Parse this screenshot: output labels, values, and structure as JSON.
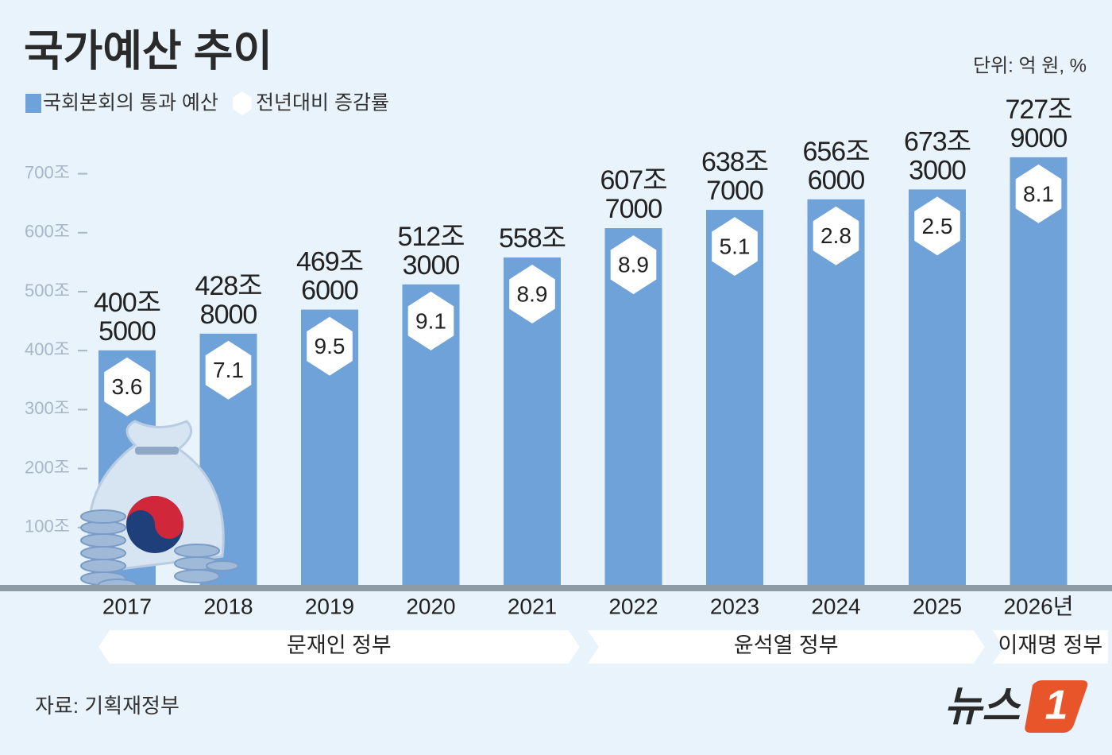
{
  "chart_data": {
    "type": "bar",
    "title": "국가예산 추이",
    "unit_note": "단위: 억 원, %",
    "categories": [
      "2017",
      "2018",
      "2019",
      "2020",
      "2021",
      "2022",
      "2023",
      "2024",
      "2025",
      "2026년"
    ],
    "series": [
      {
        "name": "국회본회의 통과 예산",
        "color": "#6ea2d8",
        "values": [
          400.5,
          428.8,
          469.6,
          512.3,
          558,
          607.7,
          638.7,
          656.6,
          673.3,
          727.9
        ],
        "value_labels": [
          [
            "400조",
            "5000"
          ],
          [
            "428조",
            "8000"
          ],
          [
            "469조",
            "6000"
          ],
          [
            "512조",
            "3000"
          ],
          [
            "558조"
          ],
          [
            "607조",
            "7000"
          ],
          [
            "638조",
            "7000"
          ],
          [
            "656조",
            "6000"
          ],
          [
            "673조",
            "3000"
          ],
          [
            "727조",
            "9000"
          ]
        ]
      },
      {
        "name": "전년대비 증감률",
        "color": "#ffffff",
        "values": [
          3.6,
          7.1,
          9.5,
          9.1,
          8.9,
          8.9,
          5.1,
          2.8,
          2.5,
          8.1
        ]
      }
    ],
    "ylim": [
      0,
      800
    ],
    "yticks": [
      {
        "value": 100,
        "label": "100조"
      },
      {
        "value": 200,
        "label": "200조"
      },
      {
        "value": 300,
        "label": "300조"
      },
      {
        "value": 400,
        "label": "400조"
      },
      {
        "value": 500,
        "label": "500조"
      },
      {
        "value": 600,
        "label": "600조"
      },
      {
        "value": 700,
        "label": "700조"
      }
    ],
    "groups": [
      "문재인 정부",
      "윤석열 정부",
      "이재명 정부"
    ],
    "source": "자료: 기획재정부",
    "logo": [
      "뉴스",
      "1"
    ]
  }
}
